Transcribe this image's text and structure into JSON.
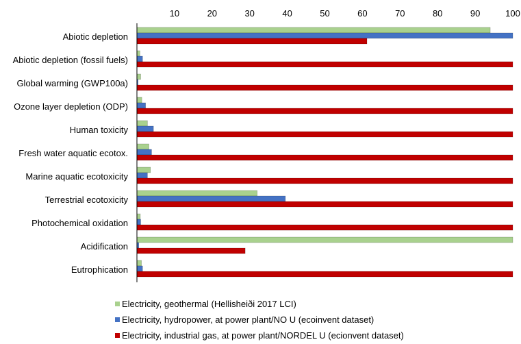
{
  "chart_data": {
    "type": "bar",
    "orientation": "horizontal",
    "x_ticks": [
      10,
      20,
      30,
      40,
      50,
      60,
      70,
      80,
      90,
      100
    ],
    "xlim": [
      0,
      100
    ],
    "grid": false,
    "legend_position": "bottom",
    "categories": [
      "Abiotic depletion",
      "Abiotic depletion (fossil fuels)",
      "Global warming (GWP100a)",
      "Ozone layer depletion (ODP)",
      "Human toxicity",
      "Fresh water aquatic ecotox.",
      "Marine aquatic ecotoxicity",
      "Terrestrial ecotoxicity",
      "Photochemical oxidation",
      "Acidification",
      "Eutrophication"
    ],
    "series": [
      {
        "name": "Electricity, geothermal (Hellisheiði 2017 LCI)",
        "color": "#a9d18e",
        "values": [
          94,
          0.8,
          1,
          1.3,
          2.8,
          3.2,
          3.6,
          32,
          0.9,
          100,
          1.2
        ]
      },
      {
        "name": "Electricity, hydropower, at power plant/NO U (ecoinvent dataset)",
        "color": "#4472c4",
        "values": [
          100,
          1.5,
          0.3,
          2.3,
          4.4,
          3.9,
          2.8,
          39.5,
          1,
          0.5,
          1.5
        ]
      },
      {
        "name": "Electricity, industrial gas, at power plant/NORDEL U (ecionvent dataset)",
        "color": "#c00000",
        "values": [
          61.2,
          100,
          100,
          100,
          100,
          100,
          100,
          100,
          100,
          28.8,
          100
        ]
      }
    ]
  }
}
